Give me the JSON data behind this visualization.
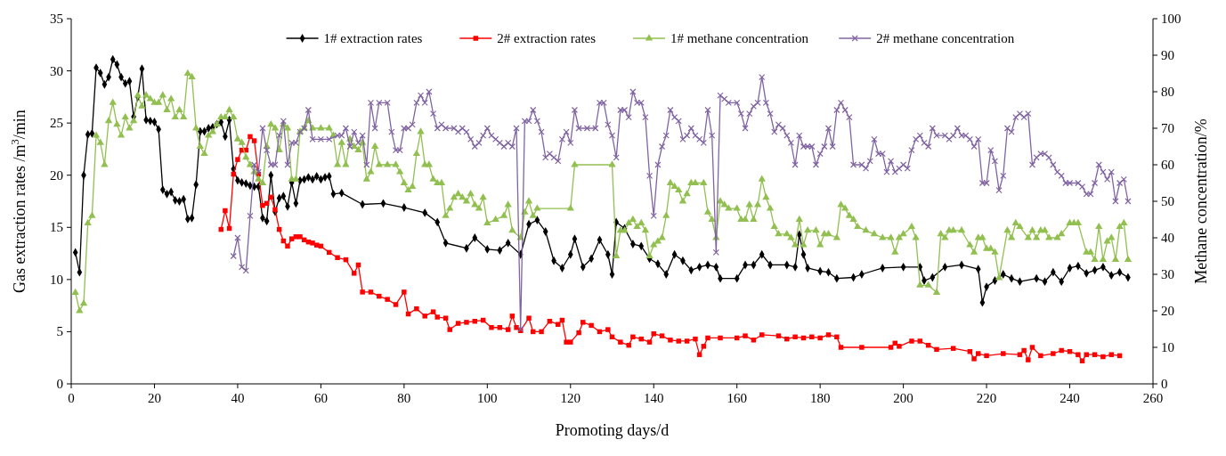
{
  "chart_data": {
    "type": "line",
    "xlabel": "Promoting days/d",
    "ylabel": "Gas extraction rates /m$^{3}$/min",
    "y2label": "Methane concentration/%",
    "xlim": [
      0,
      260
    ],
    "xticks": [
      0,
      20,
      40,
      60,
      80,
      100,
      120,
      140,
      160,
      180,
      200,
      220,
      240,
      260
    ],
    "ylim": [
      0,
      35
    ],
    "yticks": [
      0,
      5,
      10,
      15,
      20,
      25,
      30,
      35
    ],
    "y2lim": [
      0,
      100
    ],
    "y2ticks": [
      0,
      10,
      20,
      30,
      40,
      50,
      60,
      70,
      80,
      90,
      100
    ],
    "grid": false,
    "legend": "top",
    "series": [
      {
        "name": "1# extraction rates",
        "color": "#000000",
        "marker": "diamond",
        "x": [
          1,
          2,
          3,
          4,
          5,
          6,
          7,
          8,
          9,
          10,
          11,
          12,
          13,
          14,
          15,
          16,
          17,
          18,
          19,
          20,
          21,
          22,
          23,
          24,
          25,
          26,
          27,
          28,
          29,
          30,
          31,
          32,
          33,
          34,
          35,
          36,
          37,
          38,
          39,
          40,
          41,
          42,
          43,
          44,
          45,
          46,
          47,
          48,
          49,
          50,
          51,
          52,
          53,
          54,
          55,
          56,
          57,
          58,
          59,
          60,
          61,
          62,
          63,
          65,
          70,
          75,
          80,
          85,
          88,
          90,
          95,
          97,
          100,
          103,
          105,
          108,
          110,
          112,
          114,
          116,
          118,
          120,
          121,
          123,
          125,
          127,
          129,
          130,
          131,
          133,
          135,
          137,
          139,
          141,
          143,
          145,
          147,
          149,
          151,
          153,
          155,
          156,
          160,
          162,
          164,
          166,
          168,
          172,
          174,
          175,
          176,
          177,
          180,
          182,
          184,
          188,
          190,
          195,
          200,
          204,
          205,
          207,
          210,
          214,
          218,
          219,
          220,
          222,
          224,
          226,
          228,
          232,
          234,
          236,
          238,
          240,
          242,
          244,
          246,
          248,
          250,
          252,
          254
        ],
        "values": [
          12.6,
          10.7,
          20,
          23.9,
          24,
          30.3,
          29.8,
          28.7,
          29.4,
          31.1,
          30.6,
          29.4,
          28.8,
          29,
          25.6,
          27.5,
          30.2,
          25.3,
          25.2,
          25.1,
          24.4,
          18.6,
          18.2,
          18.4,
          17.6,
          17.5,
          17.7,
          15.8,
          15.9,
          19.1,
          24.2,
          24.2,
          24.5,
          24.6,
          24.9,
          25.1,
          23.7,
          25.3,
          20.6,
          19.5,
          19.3,
          19.2,
          19,
          18.9,
          18.9,
          15.9,
          15.6,
          20,
          16.5,
          17.8,
          18,
          17,
          19.3,
          17.3,
          19.5,
          19.6,
          19.8,
          19.6,
          19.9,
          19.6,
          19.8,
          19.9,
          18.2,
          18.3,
          17.2,
          17.3,
          16.9,
          16.4,
          15.5,
          13.5,
          13,
          14,
          12.9,
          12.8,
          13.5,
          12.4,
          15.3,
          15.7,
          14.6,
          11.8,
          11.1,
          12.4,
          13.9,
          11.2,
          12,
          13.8,
          12.4,
          10.5,
          15.5,
          14.9,
          13.4,
          13.2,
          12,
          11.5,
          10.5,
          12.4,
          11.8,
          10.9,
          11.2,
          11.4,
          11.2,
          10.1,
          10.1,
          11.4,
          11.4,
          12.4,
          11.4,
          11.4,
          11.2,
          14.3,
          12.4,
          11.1,
          10.8,
          10.7,
          10.1,
          10.2,
          10.5,
          11.1,
          11.2,
          11.2,
          9.9,
          10.2,
          11.2,
          11.4,
          11,
          7.8,
          9.3,
          9.9,
          10.5,
          10.1,
          9.8,
          10.1,
          9.8,
          10.7,
          9.8,
          11.1,
          11.3,
          10.6,
          10.9,
          11.2,
          10.4,
          10.7,
          10.2
        ]
      },
      {
        "name": "2# extraction rates",
        "color": "#ff0000",
        "marker": "square",
        "x": [
          36,
          37,
          38,
          39,
          40,
          41,
          42,
          43,
          44,
          45,
          46,
          47,
          48,
          49,
          50,
          51,
          52,
          53,
          54,
          55,
          56,
          57,
          58,
          59,
          60,
          62,
          64,
          66,
          68,
          69,
          70,
          72,
          74,
          76,
          78,
          80,
          81,
          83,
          85,
          87,
          88,
          90,
          91,
          93,
          95,
          97,
          99,
          101,
          103,
          105,
          106,
          107,
          108,
          110,
          111,
          113,
          115,
          117,
          118,
          119,
          120,
          122,
          123,
          125,
          127,
          129,
          130,
          132,
          134,
          135,
          137,
          139,
          140,
          142,
          144,
          146,
          148,
          150,
          151,
          152,
          153,
          156,
          160,
          162,
          164,
          166,
          170,
          172,
          174,
          176,
          178,
          180,
          182,
          184,
          185,
          190,
          197,
          198,
          199,
          202,
          204,
          206,
          208,
          212,
          216,
          217,
          218,
          220,
          224,
          228,
          229,
          230,
          231,
          233,
          236,
          238,
          240,
          242,
          243,
          244,
          246,
          248,
          250,
          252
        ],
        "values": [
          14.8,
          16.6,
          14.9,
          20.1,
          21.5,
          22.4,
          22.4,
          23.7,
          23.3,
          20.1,
          17.1,
          17.3,
          17.9,
          16.7,
          14.8,
          13.7,
          13.2,
          13.9,
          14.1,
          14.1,
          13.8,
          13.6,
          13.5,
          13.3,
          13.2,
          12.6,
          12.1,
          11.9,
          10.6,
          11.4,
          8.8,
          8.8,
          8.4,
          8.1,
          7.6,
          8.8,
          6.7,
          7.2,
          6.5,
          6.9,
          6.4,
          6.3,
          5.2,
          5.8,
          5.9,
          6,
          6.1,
          5.4,
          5.4,
          5.2,
          6.5,
          5.4,
          5.1,
          6.3,
          5,
          5,
          6,
          5.7,
          6.1,
          4,
          4,
          4.9,
          5.9,
          5.6,
          5,
          5.2,
          4.5,
          4,
          3.7,
          4.5,
          4.3,
          4,
          4.8,
          4.6,
          4.2,
          4.1,
          4.1,
          4.3,
          2.8,
          3.6,
          4.4,
          4.4,
          4.4,
          4.6,
          4.2,
          4.7,
          4.6,
          4.3,
          4.5,
          4.4,
          4.5,
          4.4,
          4.7,
          4.5,
          3.5,
          3.5,
          3.5,
          3.9,
          3.6,
          4.1,
          4.1,
          3.7,
          3.3,
          3.4,
          3.1,
          2.4,
          2.9,
          2.7,
          2.9,
          2.8,
          3.2,
          2.3,
          3.5,
          2.7,
          2.9,
          3.2,
          3.1,
          2.8,
          2.2,
          2.8,
          2.8,
          2.6,
          2.8,
          2.7
        ]
      },
      {
        "name": "1# methane concentration",
        "color": "#92c050",
        "marker": "triangle",
        "axis": "y2",
        "x": [
          1,
          2,
          3,
          4,
          5,
          6,
          7,
          8,
          9,
          10,
          11,
          12,
          13,
          14,
          15,
          16,
          17,
          18,
          19,
          20,
          21,
          22,
          23,
          24,
          25,
          26,
          27,
          28,
          29,
          30,
          31,
          32,
          33,
          34,
          35,
          36,
          37,
          38,
          39,
          40,
          41,
          42,
          43,
          44,
          45,
          46,
          47,
          48,
          49,
          50,
          51,
          52,
          53,
          54,
          55,
          56,
          57,
          58,
          60,
          62,
          63,
          64,
          65,
          66,
          67,
          68,
          69,
          70,
          71,
          72,
          73,
          74,
          76,
          78,
          79,
          80,
          81,
          82,
          83,
          84,
          85,
          86,
          87,
          88,
          89,
          90,
          91,
          92,
          93,
          94,
          95,
          96,
          97,
          98,
          99,
          100,
          102,
          104,
          105,
          106,
          108,
          109,
          110,
          111,
          112,
          120,
          121,
          130,
          131,
          132,
          133,
          134,
          135,
          136,
          137,
          138,
          139,
          140,
          141,
          142,
          143,
          144,
          145,
          146,
          147,
          148,
          149,
          150,
          152,
          153,
          154,
          155,
          156,
          157,
          158,
          160,
          161,
          162,
          163,
          164,
          165,
          166,
          167,
          168,
          169,
          170,
          172,
          173,
          174,
          175,
          176,
          177,
          179,
          180,
          181,
          182,
          184,
          185,
          186,
          187,
          188,
          189,
          191,
          193,
          195,
          197,
          198,
          199,
          200,
          202,
          203,
          204,
          206,
          208,
          209,
          210,
          211,
          212,
          214,
          216,
          217,
          218,
          219,
          220,
          221,
          222,
          223,
          225,
          226,
          227,
          228,
          230,
          231,
          232,
          233,
          234,
          235,
          237,
          238,
          240,
          241,
          242,
          244,
          245,
          246,
          247,
          248,
          249,
          250,
          251,
          252,
          253,
          254
        ],
        "values": [
          25,
          20,
          22,
          44,
          46,
          68,
          66,
          60,
          72,
          77,
          71,
          68,
          73,
          70,
          72,
          79,
          76,
          79,
          78,
          77,
          77,
          79,
          75,
          78,
          73,
          75,
          73,
          85,
          84,
          70,
          65,
          63,
          68,
          69,
          71,
          73,
          73,
          75,
          73,
          67,
          66,
          62,
          60,
          58,
          56,
          55,
          65,
          71,
          70,
          64,
          71,
          70,
          56,
          56,
          69,
          70,
          72,
          70,
          70,
          70,
          68,
          60,
          66,
          60,
          67,
          65,
          64,
          66,
          56,
          58,
          65,
          60,
          60,
          60,
          58,
          55,
          53,
          54,
          63,
          69,
          60,
          60,
          56,
          55,
          55,
          46,
          48,
          51,
          52,
          51,
          50,
          52,
          49,
          48,
          51,
          44,
          45,
          46,
          49,
          42,
          40,
          47,
          50,
          46,
          48,
          48,
          60,
          60,
          35,
          42,
          42,
          44,
          45,
          43,
          44,
          42,
          35,
          38,
          39,
          40,
          46,
          55,
          54,
          53,
          50,
          52,
          55,
          55,
          55,
          47,
          45,
          40,
          50,
          49,
          48,
          48,
          45,
          45,
          49,
          45,
          49,
          56,
          51,
          48,
          43,
          41,
          41,
          40,
          38,
          45,
          38,
          42,
          42,
          38,
          41,
          41,
          40,
          49,
          48,
          46,
          45,
          43,
          42,
          41,
          40,
          40,
          36,
          40,
          41,
          43,
          40,
          27,
          27,
          25,
          41,
          40,
          42,
          42,
          42,
          38,
          36,
          40,
          40,
          37,
          37,
          36,
          29,
          42,
          40,
          44,
          43,
          40,
          42,
          40,
          42,
          42,
          40,
          40,
          41,
          44,
          44,
          44,
          36,
          36,
          34,
          43,
          34,
          39,
          40,
          34,
          43,
          44,
          34
        ]
      },
      {
        "name": "2# methane concentration",
        "color": "#8064a2",
        "marker": "cross",
        "axis": "y2",
        "x": [
          39,
          40,
          41,
          42,
          43,
          44,
          45,
          46,
          47,
          48,
          49,
          50,
          51,
          52,
          53,
          54,
          55,
          56,
          57,
          58,
          60,
          62,
          64,
          65,
          66,
          67,
          68,
          69,
          70,
          71,
          72,
          73,
          74,
          76,
          77,
          78,
          79,
          80,
          81,
          82,
          83,
          84,
          85,
          86,
          87,
          88,
          89,
          90,
          92,
          93,
          94,
          95,
          96,
          97,
          98,
          99,
          100,
          101,
          102,
          103,
          104,
          105,
          106,
          107,
          108,
          109,
          110,
          111,
          112,
          113,
          114,
          115,
          116,
          117,
          118,
          119,
          120,
          121,
          122,
          124,
          126,
          127,
          128,
          129,
          130,
          131,
          132,
          133,
          134,
          135,
          136,
          137,
          138,
          139,
          140,
          141,
          142,
          143,
          144,
          145,
          146,
          147,
          148,
          149,
          150,
          151,
          152,
          153,
          154,
          155,
          156,
          157,
          158,
          160,
          161,
          162,
          163,
          164,
          165,
          166,
          167,
          168,
          169,
          170,
          171,
          172,
          173,
          174,
          175,
          176,
          177,
          178,
          179,
          180,
          181,
          182,
          183,
          184,
          185,
          186,
          187,
          188,
          190,
          191,
          192,
          193,
          194,
          195,
          196,
          197,
          198,
          199,
          200,
          201,
          202,
          203,
          204,
          205,
          206,
          207,
          208,
          210,
          211,
          212,
          213,
          214,
          215,
          216,
          217,
          218,
          219,
          220,
          221,
          222,
          223,
          224,
          225,
          226,
          227,
          228,
          229,
          230,
          231,
          232,
          233,
          234,
          235,
          236,
          237,
          238,
          239,
          240,
          242,
          243,
          244,
          245,
          246,
          247,
          248,
          249,
          250,
          251,
          252,
          253,
          254
        ],
        "values": [
          35,
          40,
          32,
          31,
          46,
          60,
          58,
          70,
          64,
          60,
          60,
          68,
          72,
          60,
          66,
          66,
          69,
          70,
          75,
          67,
          67,
          67,
          68,
          68,
          70,
          65,
          69,
          66,
          68,
          60,
          77,
          70,
          77,
          77,
          69,
          64,
          64,
          70,
          70,
          71,
          77,
          79,
          77,
          80,
          74,
          70,
          71,
          70,
          70,
          69,
          70,
          69,
          67,
          65,
          66,
          68,
          70,
          68,
          67,
          66,
          65,
          66,
          65,
          70,
          15,
          72,
          72,
          75,
          72,
          69,
          62,
          63,
          62,
          61,
          67,
          69,
          66,
          75,
          70,
          70,
          70,
          77,
          77,
          71,
          68,
          62,
          75,
          75,
          73,
          80,
          77,
          77,
          73,
          57,
          46,
          60,
          65,
          68,
          75,
          73,
          72,
          67,
          68,
          70,
          68,
          67,
          66,
          75,
          68,
          36,
          79,
          78,
          77,
          77,
          74,
          70,
          74,
          76,
          77,
          84,
          77,
          74,
          69,
          71,
          70,
          68,
          66,
          60,
          68,
          65,
          65,
          65,
          60,
          63,
          65,
          70,
          65,
          75,
          77,
          75,
          73,
          60,
          60,
          59,
          61,
          67,
          63,
          63,
          58,
          61,
          58,
          59,
          60,
          59,
          64,
          67,
          68,
          66,
          65,
          70,
          68,
          68,
          67,
          68,
          70,
          68,
          68,
          67,
          65,
          67,
          55,
          55,
          64,
          61,
          53,
          57,
          70,
          69,
          73,
          74,
          73,
          74,
          60,
          62,
          63,
          63,
          62,
          60,
          58,
          57,
          55,
          55,
          55,
          54,
          52,
          52,
          55,
          60,
          58,
          56,
          58,
          50,
          55,
          56,
          50
        ]
      }
    ]
  }
}
